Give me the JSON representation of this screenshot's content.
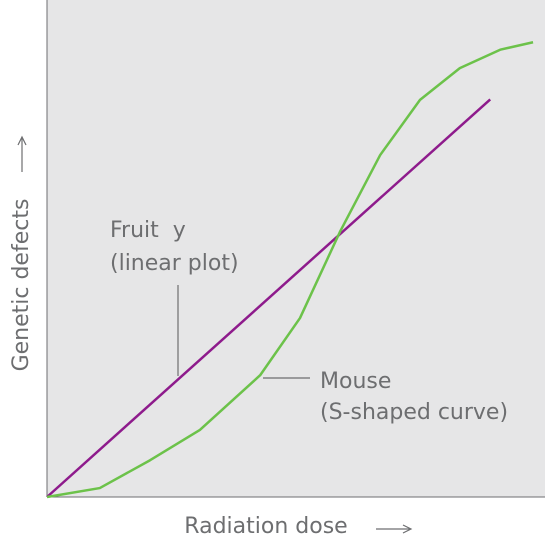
{
  "chart_data": {
    "type": "line",
    "x_label": "Radiation dose",
    "y_label": "Genetic defects",
    "xlim": [
      0,
      100
    ],
    "ylim": [
      0,
      100
    ],
    "series": [
      {
        "name": "Fruit  y",
        "color": "#8e1b8c",
        "x": [
          0,
          89
        ],
        "values": [
          0,
          80
        ]
      },
      {
        "name": "Mouse",
        "color": "#6cc24a",
        "x": [
          0,
          10.6,
          20.7,
          30.7,
          42.8,
          50.8,
          58.8,
          66.9,
          74.9,
          82.9,
          91,
          97.6
        ],
        "values": [
          0,
          1.8,
          7.4,
          13.5,
          24.5,
          36,
          53.3,
          68.8,
          79.9,
          86.3,
          90,
          91.5
        ]
      }
    ],
    "annotations": [
      "Fruit  y",
      "(linear plot)",
      "Mouse",
      "(S-shaped curve)"
    ]
  }
}
